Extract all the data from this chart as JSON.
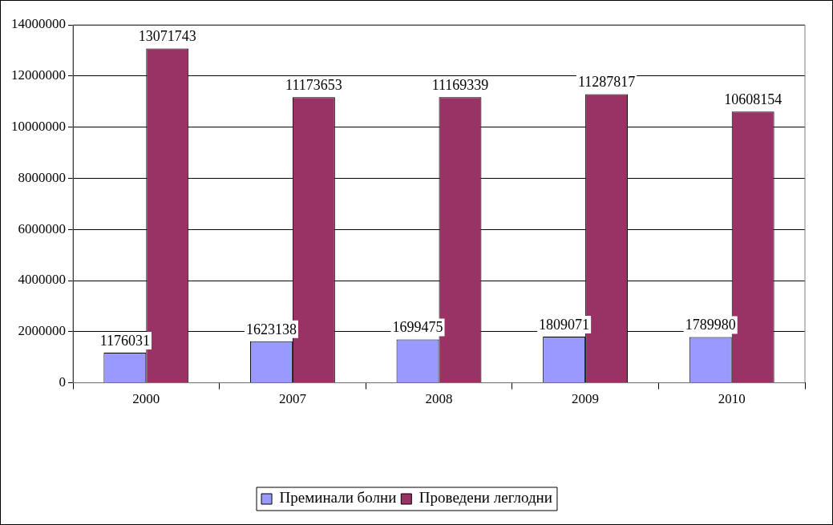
{
  "chart_data": {
    "type": "bar",
    "categories": [
      "2000",
      "2007",
      "2008",
      "2009",
      "2010"
    ],
    "series": [
      {
        "name": "Преминали болни",
        "color": "#9999ff",
        "values": [
          1176031,
          1623138,
          1699475,
          1809071,
          1789980
        ]
      },
      {
        "name": "Проведени леглодни",
        "color": "#993366",
        "values": [
          13071743,
          11173653,
          11169339,
          11287817,
          10608154
        ]
      }
    ],
    "ylim": [
      0,
      14000000
    ],
    "yticks": [
      0,
      2000000,
      4000000,
      6000000,
      8000000,
      10000000,
      12000000,
      14000000
    ],
    "grid": "y",
    "legend": "bottom",
    "data_labels": true
  }
}
